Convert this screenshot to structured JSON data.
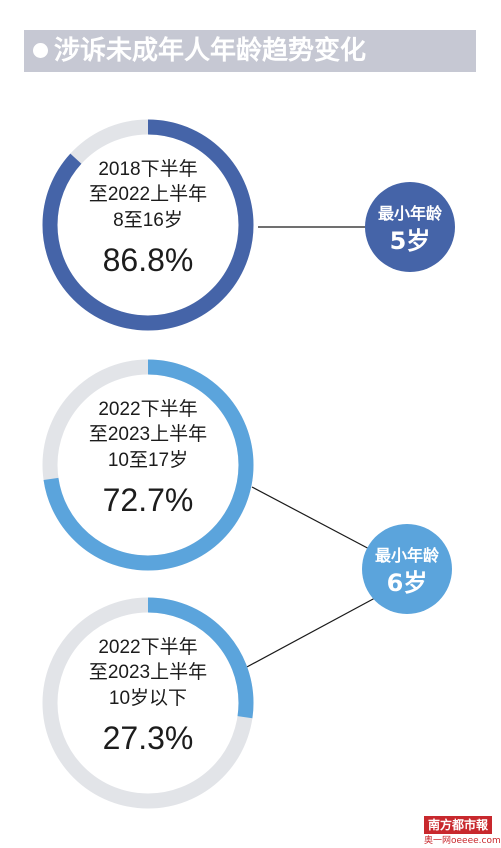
{
  "title": "涉诉未成年人年龄趋势变化",
  "colors": {
    "title_bg": "#c6c8d3",
    "track": "#e2e4e8",
    "dark_blue": "#4564a8",
    "light_blue": "#5ba4dc",
    "connector": "#1a1a1a"
  },
  "chart_data": {
    "type": "pie",
    "rings": [
      {
        "period_line1": "2018下半年",
        "period_line2": "至2022上半年",
        "age_range": "8至16岁",
        "value": 86.8,
        "value_label": "86.8%",
        "color": "#4564a8"
      },
      {
        "period_line1": "2022下半年",
        "period_line2": "至2023上半年",
        "age_range": "10至17岁",
        "value": 72.7,
        "value_label": "72.7%",
        "color": "#5ba4dc"
      },
      {
        "period_line1": "2022下半年",
        "period_line2": "至2023上半年",
        "age_range": "10岁以下",
        "value": 27.3,
        "value_label": "27.3%",
        "color": "#5ba4dc"
      }
    ],
    "min_age_badges": [
      {
        "label": "最小年龄",
        "value": "5岁",
        "color": "#4564a8",
        "applies_to": [
          0
        ]
      },
      {
        "label": "最小年龄",
        "value": "6岁",
        "color": "#5ba4dc",
        "applies_to": [
          1,
          2
        ]
      }
    ]
  },
  "logo": {
    "text": "南方都市報",
    "sub": "奥一网oeeee.com"
  }
}
